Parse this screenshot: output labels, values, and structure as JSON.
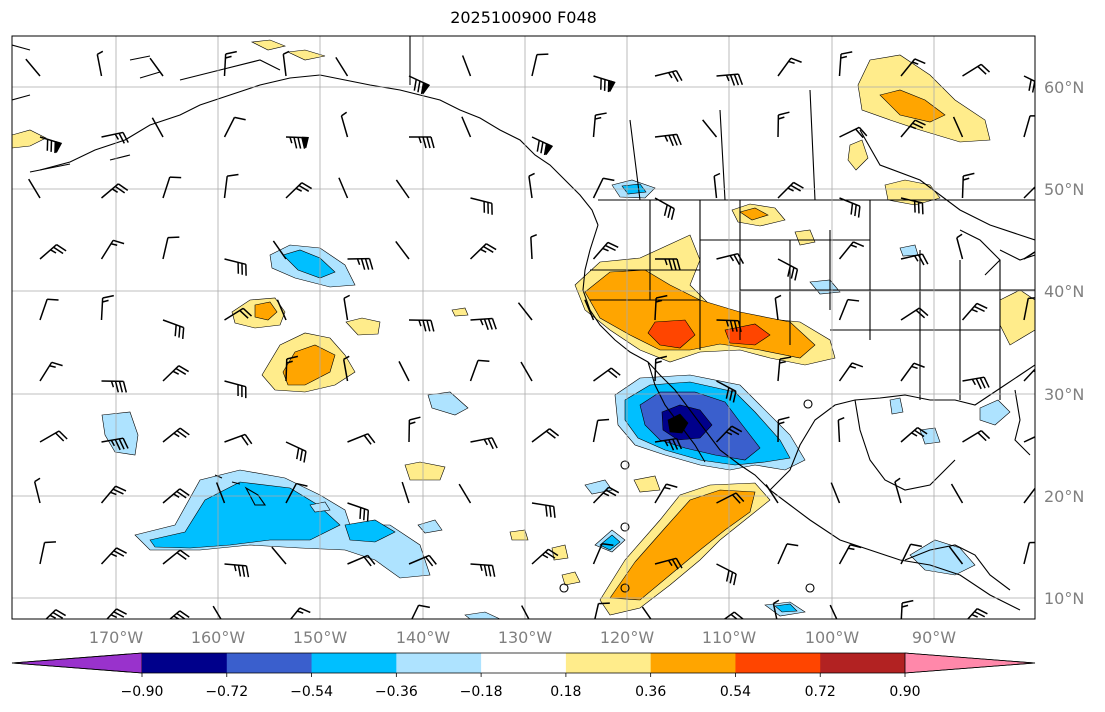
{
  "title": "2025100900 F048",
  "lon_labels": [
    "170°W",
    "160°W",
    "150°W",
    "140°W",
    "130°W",
    "120°W",
    "110°W",
    "100°W",
    "90°W"
  ],
  "lat_labels": [
    "60°N",
    "50°N",
    "40°N",
    "30°N",
    "20°N",
    "10°N"
  ],
  "colorbar": {
    "tick_labels": [
      "−0.90",
      "−0.72",
      "−0.54",
      "−0.36",
      "−0.18",
      "0.18",
      "0.36",
      "0.54",
      "0.72",
      "0.90"
    ],
    "colors": [
      "#9932cc",
      "#00008b",
      "#3a5fcd",
      "#00bfff",
      "#aee3ff",
      "#ffffff",
      "#ffec8b",
      "#ffa500",
      "#ff4500",
      "#b22222",
      "#ff88aa"
    ]
  },
  "colors": {
    "land_line": "#000000",
    "grid": "#aaaaaa",
    "label": "#808080"
  }
}
